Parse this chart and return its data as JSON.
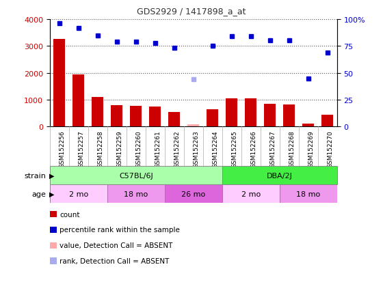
{
  "title": "GDS2929 / 1417898_a_at",
  "samples": [
    "GSM152256",
    "GSM152257",
    "GSM152258",
    "GSM152259",
    "GSM152260",
    "GSM152261",
    "GSM152262",
    "GSM152263",
    "GSM152264",
    "GSM152265",
    "GSM152266",
    "GSM152267",
    "GSM152268",
    "GSM152269",
    "GSM152270"
  ],
  "count_values": [
    3250,
    1950,
    1100,
    790,
    770,
    740,
    540,
    80,
    640,
    1040,
    1060,
    840,
    820,
    100,
    440
  ],
  "count_absent": [
    false,
    false,
    false,
    false,
    false,
    false,
    false,
    true,
    false,
    false,
    false,
    false,
    false,
    false,
    false
  ],
  "percentile_values": [
    96,
    92,
    85,
    79,
    79,
    78,
    73,
    44,
    75,
    84,
    84,
    80,
    80,
    45,
    69
  ],
  "percentile_absent": [
    false,
    false,
    false,
    false,
    false,
    false,
    false,
    true,
    false,
    false,
    false,
    false,
    false,
    false,
    false
  ],
  "ylim_left": [
    0,
    4000
  ],
  "ylim_right": [
    0,
    100
  ],
  "left_ticks": [
    0,
    1000,
    2000,
    3000,
    4000
  ],
  "right_ticks": [
    0,
    25,
    50,
    75,
    100
  ],
  "strain_groups": [
    {
      "label": "C57BL/6J",
      "start": 0,
      "end": 9,
      "color": "#aaffaa"
    },
    {
      "label": "DBA/2J",
      "start": 9,
      "end": 15,
      "color": "#44ee44"
    }
  ],
  "age_groups": [
    {
      "label": "2 mo",
      "start": 0,
      "end": 3,
      "color": "#ffccff"
    },
    {
      "label": "18 mo",
      "start": 3,
      "end": 6,
      "color": "#ee99ee"
    },
    {
      "label": "26 mo",
      "start": 6,
      "end": 9,
      "color": "#dd66dd"
    },
    {
      "label": "2 mo",
      "start": 9,
      "end": 12,
      "color": "#ffccff"
    },
    {
      "label": "18 mo",
      "start": 12,
      "end": 15,
      "color": "#ee99ee"
    }
  ],
  "bar_color": "#cc0000",
  "bar_absent_color": "#ffaaaa",
  "dot_color": "#0000cc",
  "dot_absent_color": "#aaaaee",
  "grid_color": "#555555",
  "bg_color": "#ffffff",
  "plot_bg_color": "#ffffff",
  "legend_items": [
    {
      "label": "count",
      "color": "#cc0000"
    },
    {
      "label": "percentile rank within the sample",
      "color": "#0000cc"
    },
    {
      "label": "value, Detection Call = ABSENT",
      "color": "#ffaaaa"
    },
    {
      "label": "rank, Detection Call = ABSENT",
      "color": "#aaaaee"
    }
  ]
}
